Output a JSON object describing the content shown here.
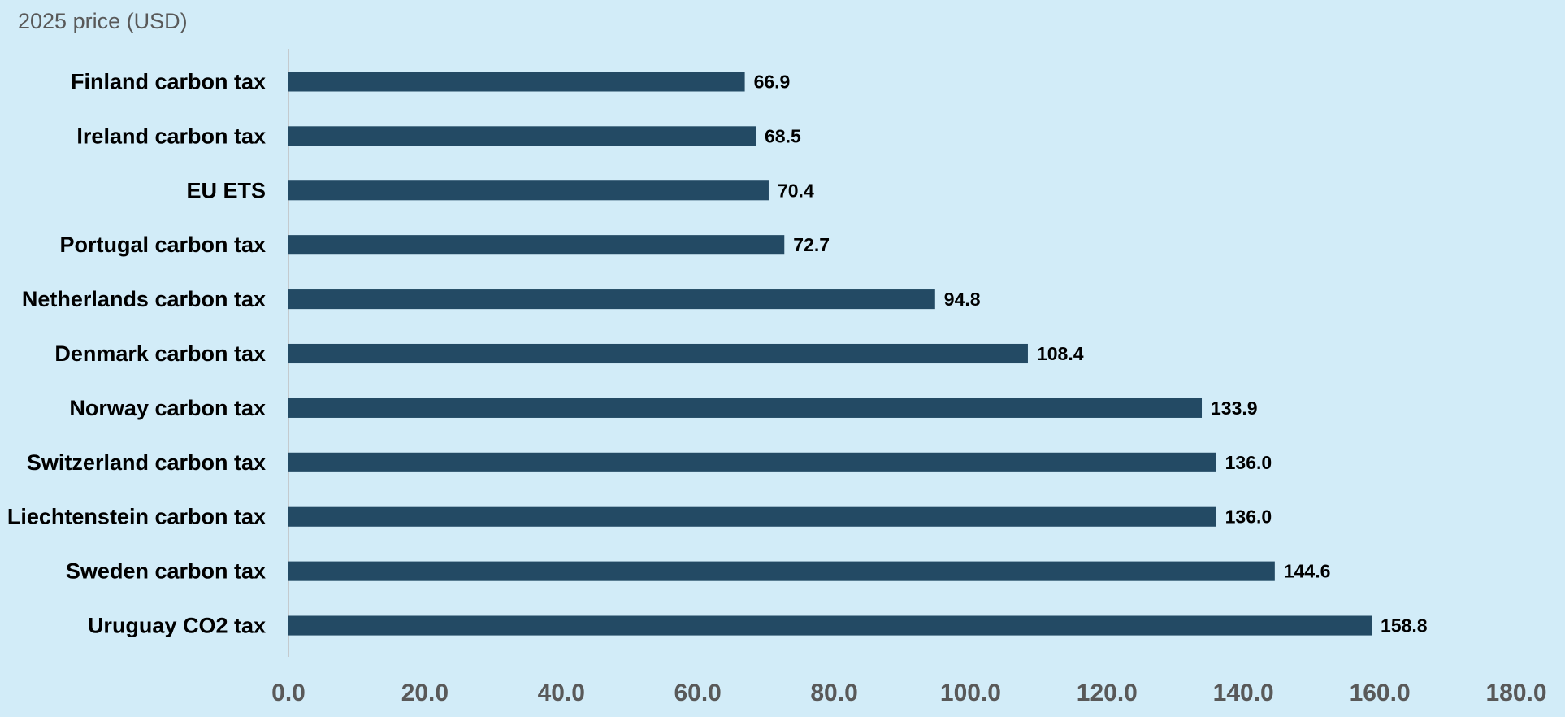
{
  "chart_data": {
    "type": "bar",
    "orientation": "horizontal",
    "title": "",
    "axis_title": "2025 price (USD)",
    "categories": [
      "Finland carbon tax",
      "Ireland carbon tax",
      "EU ETS",
      "Portugal carbon tax",
      "Netherlands carbon tax",
      "Denmark carbon tax",
      "Norway carbon tax",
      "Switzerland carbon tax",
      "Liechtenstein carbon tax",
      "Sweden carbon tax",
      "Uruguay CO2 tax"
    ],
    "values": [
      66.9,
      68.5,
      70.4,
      72.7,
      94.8,
      108.4,
      133.9,
      136.0,
      136.0,
      144.6,
      158.8
    ],
    "value_labels": [
      "66.9",
      "68.5",
      "70.4",
      "72.7",
      "94.8",
      "108.4",
      "133.9",
      "136.0",
      "136.0",
      "144.6",
      "158.8"
    ],
    "xlim": [
      0,
      180
    ],
    "x_ticks": [
      0,
      20,
      40,
      60,
      80,
      100,
      120,
      140,
      160,
      180
    ],
    "x_tick_labels": [
      "0.0",
      "20.0",
      "40.0",
      "60.0",
      "80.0",
      "100.0",
      "120.0",
      "140.0",
      "160.0",
      "180.0"
    ],
    "grid": false,
    "legend": "none",
    "colors": {
      "background": "#d2ecf8",
      "bar": "#234a64",
      "axis_line": "#bfbfbf"
    }
  }
}
